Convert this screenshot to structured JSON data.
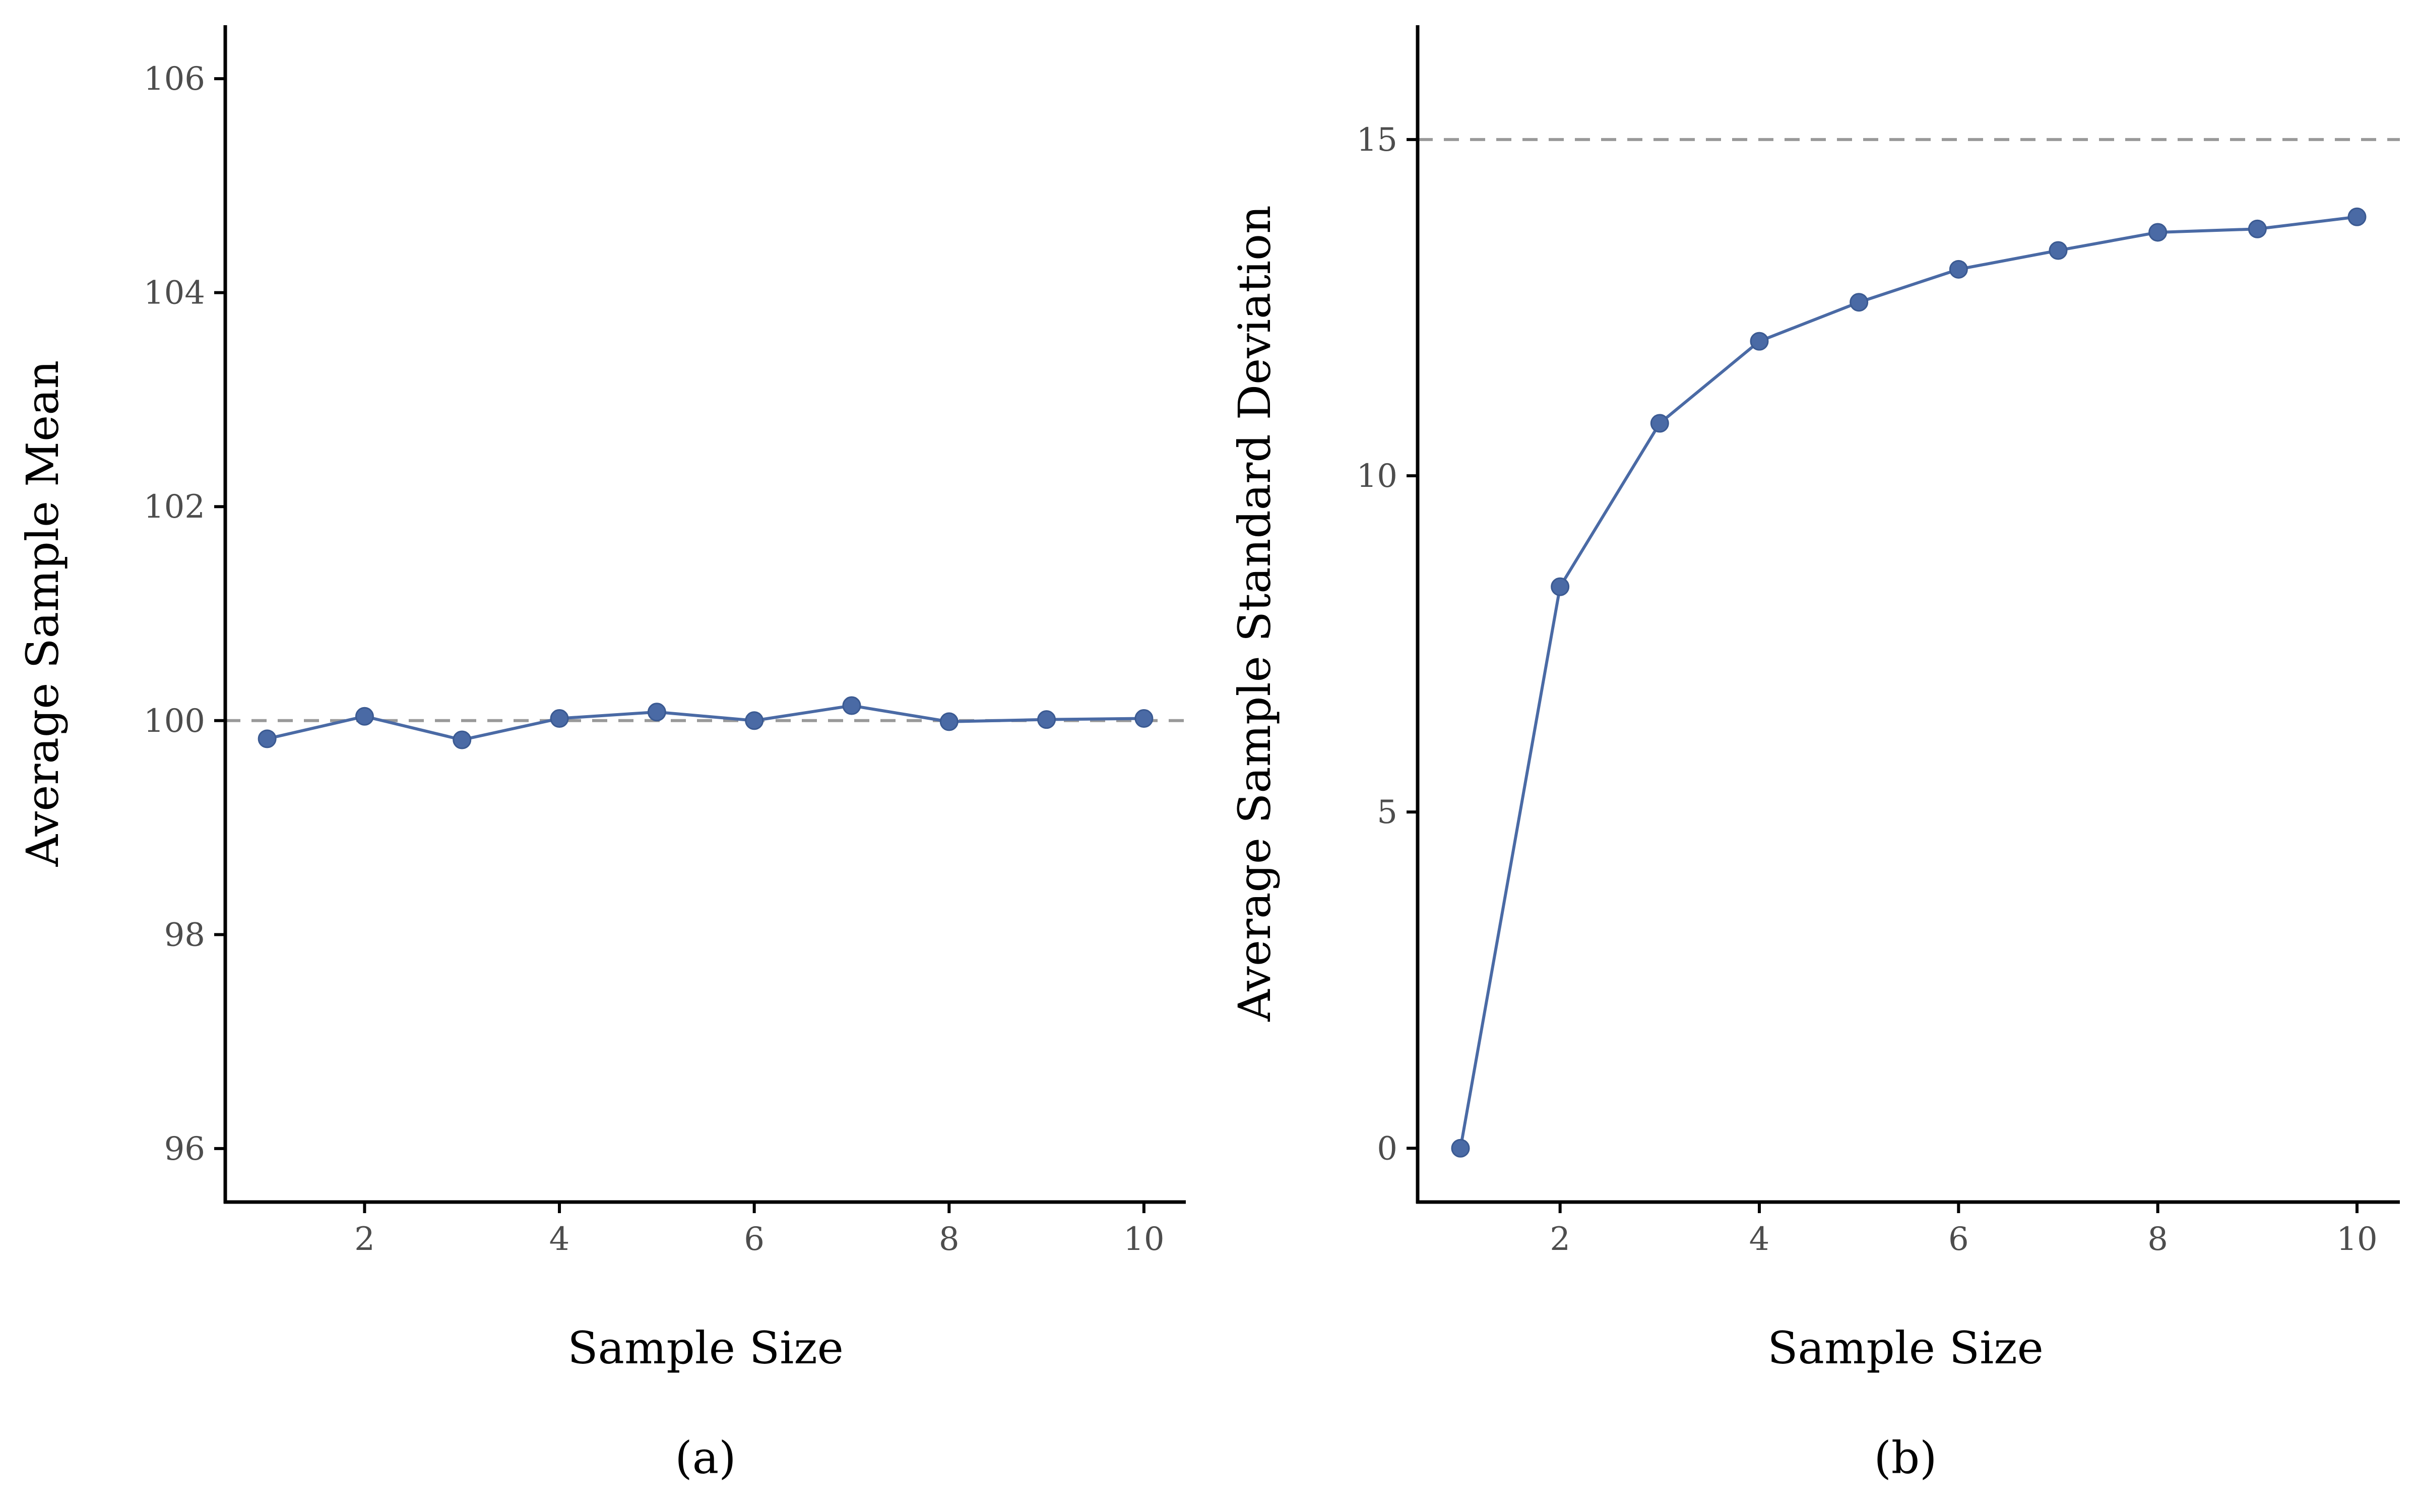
{
  "colors": {
    "series": "#4A6AA5",
    "reference": "#999999",
    "axis": "#000000"
  },
  "chart_data": [
    {
      "type": "line",
      "caption": "(a)",
      "xlabel": "Sample Size",
      "ylabel": "Average Sample Mean",
      "xlim": [
        0.57,
        10.43
      ],
      "ylim": [
        95.5,
        106.5
      ],
      "xticks": [
        2,
        4,
        6,
        8,
        10
      ],
      "yticks": [
        96,
        98,
        100,
        102,
        104,
        106
      ],
      "grid": false,
      "legend": "none",
      "reference_line": {
        "y": 100,
        "style": "dashed"
      },
      "series": [
        {
          "x": [
            1,
            2,
            3,
            4,
            5,
            6,
            7,
            8,
            9,
            10
          ],
          "y": [
            99.83,
            100.04,
            99.82,
            100.02,
            100.08,
            100.0,
            100.14,
            99.99,
            100.01,
            100.02
          ]
        }
      ]
    },
    {
      "type": "line",
      "caption": "(b)",
      "xlabel": "Sample Size",
      "ylabel": "Average Sample Standard Deviation",
      "xlim": [
        0.57,
        10.43
      ],
      "ylim": [
        -0.8,
        16.7
      ],
      "xticks": [
        2,
        4,
        6,
        8,
        10
      ],
      "yticks": [
        0,
        5,
        10,
        15
      ],
      "grid": false,
      "legend": "none",
      "reference_line": {
        "y": 15,
        "style": "dashed"
      },
      "series": [
        {
          "x": [
            1,
            2,
            3,
            4,
            5,
            6,
            7,
            8,
            9,
            10
          ],
          "y": [
            0.0,
            8.35,
            10.78,
            12.0,
            12.58,
            13.07,
            13.35,
            13.62,
            13.67,
            13.85
          ]
        }
      ]
    }
  ]
}
